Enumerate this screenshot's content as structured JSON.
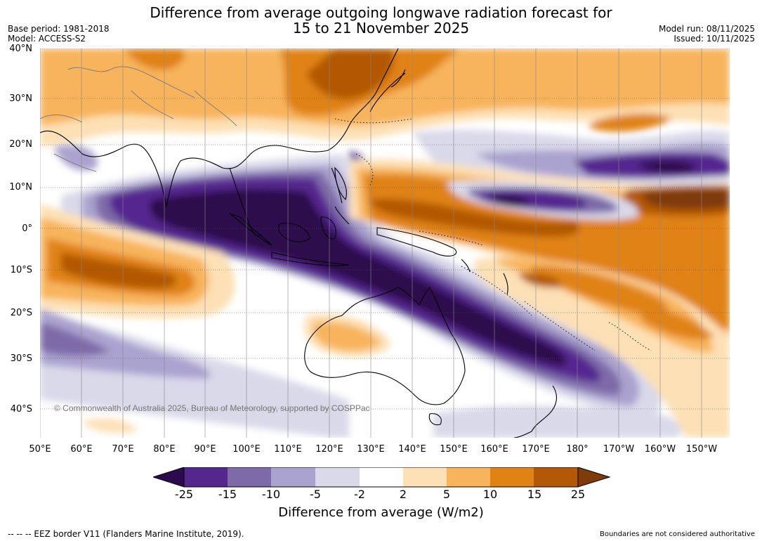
{
  "title": {
    "line1": "Difference from average outgoing longwave radiation forecast for",
    "line2": "15 to 21 November 2025"
  },
  "meta": {
    "base_period": "Base period: 1981-2018",
    "model": "Model: ACCESS-S2",
    "model_run": "Model run: 08/11/2025",
    "issued": "Issued: 10/11/2025"
  },
  "map": {
    "lat_labels": [
      "40°N",
      "30°N",
      "20°N",
      "10°N",
      "0°",
      "10°S",
      "20°S",
      "30°S",
      "40°S"
    ],
    "lon_labels": [
      "50°E",
      "60°E",
      "70°E",
      "80°E",
      "90°E",
      "100°E",
      "110°E",
      "120°E",
      "130°E",
      "140°E",
      "150°E",
      "160°E",
      "170°E",
      "180°",
      "170°W",
      "160°W",
      "150°W"
    ],
    "copyright": "© Commonwealth of Australia 2025, Bureau of Meteorology, supported by COSPPac"
  },
  "colorbar": {
    "tick_labels": [
      "-25",
      "-15",
      "-10",
      "-5",
      "-2",
      "2",
      "5",
      "10",
      "15",
      "25"
    ],
    "colors": [
      "#2d0a4e",
      "#54278f",
      "#7e6aa8",
      "#aba3cf",
      "#d9d9ea",
      "#ffffff",
      "#fde0b5",
      "#f8b45c",
      "#e08214",
      "#b35806",
      "#7f3b08"
    ],
    "title": "Difference from average (W/m2)"
  },
  "footer": {
    "eez": "--  --  -- EEZ border V11 (Flanders Marine Institute, 2019).",
    "disclaimer": "Boundaries are not considered authoritative"
  }
}
